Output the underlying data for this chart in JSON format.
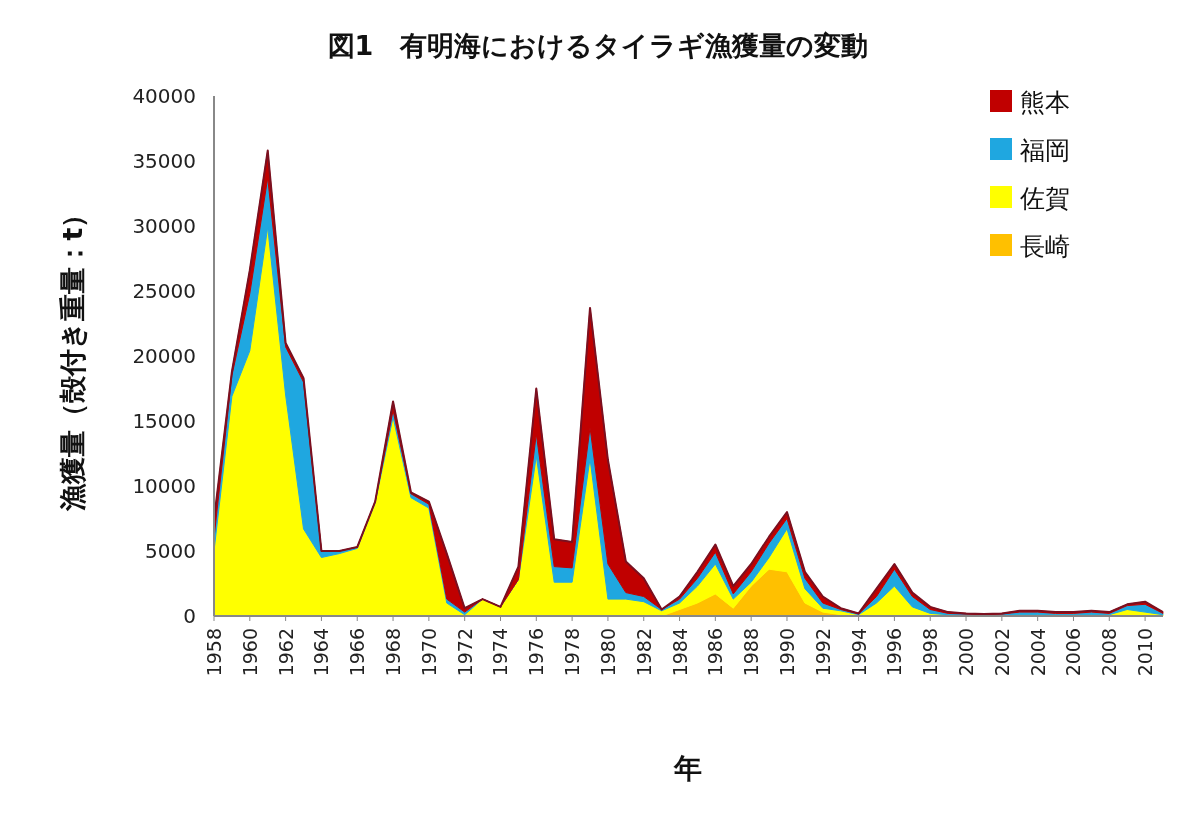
{
  "chart_data": {
    "type": "area",
    "stacked": true,
    "title": "図1　有明海におけるタイラギ漁獲量の変動",
    "xlabel": "年",
    "ylabel": "漁獲量（殻付き重量：t）",
    "x": [
      1958,
      1959,
      1960,
      1961,
      1962,
      1963,
      1964,
      1965,
      1966,
      1967,
      1968,
      1969,
      1970,
      1971,
      1972,
      1973,
      1974,
      1975,
      1976,
      1977,
      1978,
      1979,
      1980,
      1981,
      1982,
      1983,
      1984,
      1985,
      1986,
      1987,
      1988,
      1989,
      1990,
      1991,
      1992,
      1993,
      1994,
      1995,
      1996,
      1997,
      1998,
      1999,
      2000,
      2001,
      2002,
      2003,
      2004,
      2005,
      2006,
      2007,
      2008,
      2009,
      2010,
      2011
    ],
    "xlim": [
      1958,
      2011
    ],
    "xticks": [
      1958,
      1960,
      1962,
      1964,
      1966,
      1968,
      1970,
      1972,
      1974,
      1976,
      1978,
      1980,
      1982,
      1984,
      1986,
      1988,
      1990,
      1992,
      1994,
      1996,
      1998,
      2000,
      2002,
      2004,
      2006,
      2008,
      2010
    ],
    "ylim": [
      0,
      40000
    ],
    "yticks": [
      0,
      5000,
      10000,
      15000,
      20000,
      25000,
      30000,
      35000,
      40000
    ],
    "grid": false,
    "legend": "top right",
    "series": [
      {
        "name": "長崎",
        "color": "#ffc000",
        "values": [
          0,
          0,
          0,
          0,
          0,
          0,
          0,
          0,
          0,
          0,
          0,
          0,
          0,
          0,
          0,
          0,
          0,
          0,
          0,
          0,
          0,
          0,
          0,
          0,
          0,
          0,
          500,
          1000,
          1700,
          600,
          2300,
          3600,
          3400,
          1000,
          300,
          100,
          0,
          0,
          0,
          0,
          0,
          0,
          0,
          0,
          0,
          0,
          0,
          0,
          0,
          0,
          0,
          0,
          0,
          0
        ]
      },
      {
        "name": "佐賀",
        "color": "#ffff00",
        "values": [
          5000,
          16900,
          20400,
          29900,
          17000,
          6700,
          4500,
          4800,
          5200,
          8700,
          15300,
          9100,
          8300,
          1000,
          100,
          1300,
          700,
          2800,
          12300,
          2600,
          2600,
          12100,
          1300,
          1300,
          1100,
          400,
          500,
          1300,
          2300,
          700,
          300,
          900,
          3300,
          1100,
          300,
          300,
          100,
          1000,
          2300,
          700,
          200,
          100,
          50,
          50,
          50,
          100,
          100,
          100,
          100,
          100,
          100,
          500,
          300,
          100
        ]
      },
      {
        "name": "福岡",
        "color": "#1fa7e0",
        "values": [
          1000,
          1600,
          4400,
          3800,
          3700,
          11300,
          500,
          200,
          100,
          100,
          500,
          300,
          300,
          300,
          200,
          0,
          0,
          0,
          1700,
          1200,
          1100,
          2400,
          2700,
          500,
          400,
          100,
          300,
          600,
          900,
          400,
          800,
          1100,
          800,
          800,
          400,
          100,
          50,
          500,
          1300,
          800,
          300,
          100,
          100,
          50,
          100,
          200,
          200,
          100,
          100,
          200,
          100,
          300,
          600,
          100
        ]
      },
      {
        "name": "熊本",
        "color": "#c00000",
        "values": [
          1400,
          300,
          1800,
          2100,
          300,
          300,
          0,
          0,
          0,
          0,
          700,
          100,
          200,
          3500,
          300,
          0,
          0,
          1000,
          3500,
          2100,
          2000,
          9200,
          8000,
          2400,
          1400,
          0,
          200,
          500,
          600,
          600,
          600,
          500,
          500,
          500,
          500,
          100,
          50,
          600,
          400,
          300,
          200,
          100,
          50,
          50,
          50,
          100,
          100,
          100,
          100,
          100,
          100,
          100,
          200,
          100
        ]
      }
    ]
  }
}
